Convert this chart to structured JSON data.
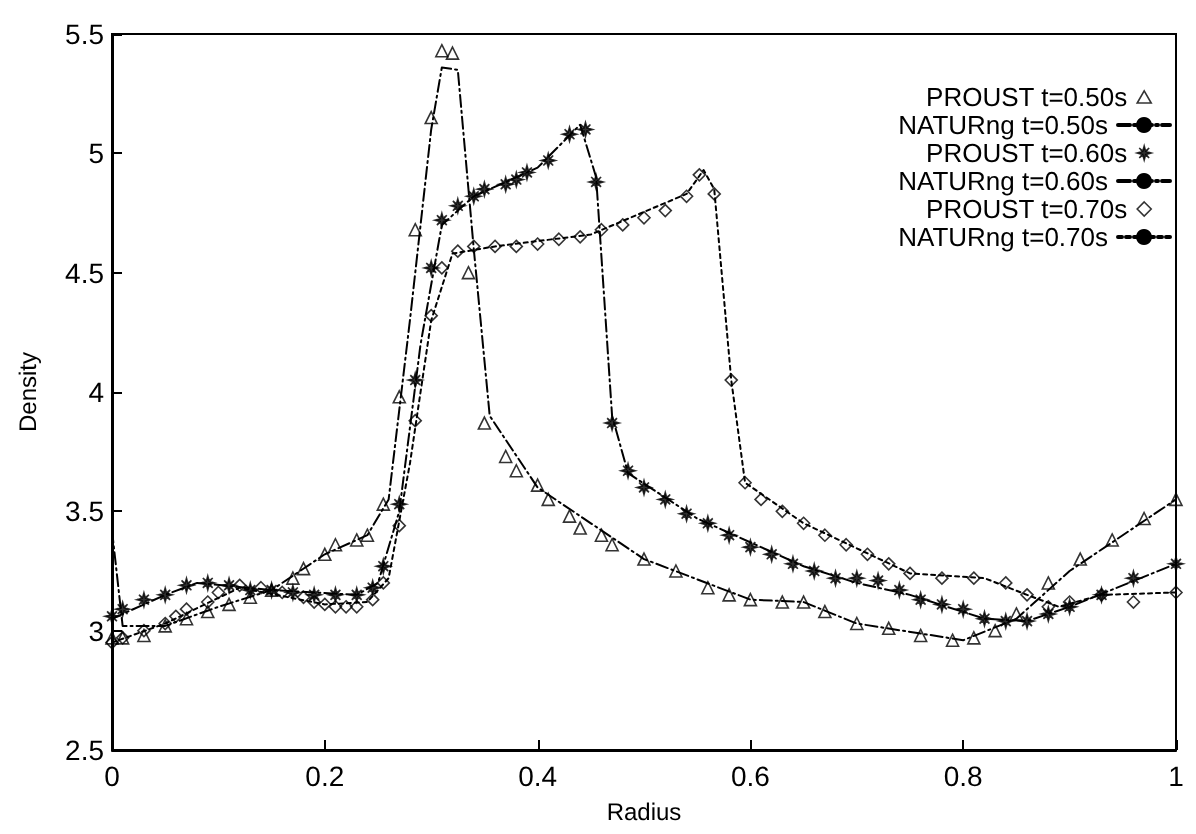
{
  "chart_data": {
    "type": "line",
    "xlabel": "Radius",
    "ylabel": "Density",
    "xlim": [
      0,
      1
    ],
    "xticks": [
      0,
      0.2,
      0.4,
      0.6,
      0.8,
      1
    ],
    "ylim": [
      2.5,
      5.5
    ],
    "yticks": [
      2.5,
      3,
      3.5,
      4,
      4.5,
      5,
      5.5
    ],
    "grid": false,
    "legend": "top right",
    "series": [
      {
        "name": "PROUST t=0.50s",
        "type": "scatter",
        "marker": "triangle",
        "color": "#000000",
        "x": [
          0,
          0.01,
          0.03,
          0.05,
          0.07,
          0.09,
          0.11,
          0.13,
          0.15,
          0.17,
          0.18,
          0.2,
          0.21,
          0.23,
          0.24,
          0.255,
          0.27,
          0.285,
          0.3,
          0.31,
          0.32,
          0.335,
          0.35,
          0.37,
          0.38,
          0.4,
          0.41,
          0.43,
          0.44,
          0.46,
          0.47,
          0.5,
          0.53,
          0.56,
          0.58,
          0.6,
          0.63,
          0.65,
          0.67,
          0.7,
          0.73,
          0.76,
          0.79,
          0.81,
          0.83,
          0.85,
          0.88,
          0.91,
          0.94,
          0.97,
          1
        ],
        "values": [
          2.97,
          2.97,
          2.98,
          3.02,
          3.05,
          3.08,
          3.11,
          3.14,
          3.17,
          3.22,
          3.26,
          3.32,
          3.36,
          3.38,
          3.4,
          3.53,
          3.98,
          4.68,
          5.15,
          5.43,
          5.42,
          4.5,
          3.87,
          3.73,
          3.67,
          3.61,
          3.55,
          3.48,
          3.43,
          3.4,
          3.36,
          3.3,
          3.25,
          3.18,
          3.15,
          3.13,
          3.12,
          3.12,
          3.08,
          3.03,
          3.01,
          2.98,
          2.96,
          2.97,
          3.0,
          3.07,
          3.2,
          3.3,
          3.38,
          3.47,
          3.55
        ]
      },
      {
        "name": "NATURng t=0.50s",
        "type": "line",
        "line_style": "dashed",
        "color": "#000000",
        "x": [
          0,
          0.01,
          0.05,
          0.1,
          0.15,
          0.2,
          0.24,
          0.26,
          0.28,
          0.3,
          0.31,
          0.325,
          0.34,
          0.355,
          0.4,
          0.5,
          0.6,
          0.65,
          0.7,
          0.8,
          0.85,
          0.9,
          1
        ],
        "values": [
          3.42,
          3.02,
          3.02,
          3.1,
          3.17,
          3.32,
          3.4,
          3.55,
          4.3,
          5.1,
          5.36,
          5.35,
          4.6,
          3.9,
          3.6,
          3.3,
          3.13,
          3.12,
          3.03,
          2.96,
          3.05,
          3.25,
          3.55
        ]
      },
      {
        "name": "PROUST t=0.60s",
        "type": "scatter",
        "marker": "star",
        "color": "#000000",
        "x": [
          0,
          0.01,
          0.03,
          0.05,
          0.07,
          0.09,
          0.11,
          0.13,
          0.15,
          0.17,
          0.19,
          0.21,
          0.23,
          0.245,
          0.255,
          0.27,
          0.285,
          0.3,
          0.31,
          0.325,
          0.34,
          0.35,
          0.37,
          0.38,
          0.39,
          0.41,
          0.43,
          0.445,
          0.455,
          0.47,
          0.485,
          0.5,
          0.52,
          0.54,
          0.56,
          0.58,
          0.6,
          0.62,
          0.64,
          0.66,
          0.68,
          0.7,
          0.72,
          0.74,
          0.76,
          0.78,
          0.8,
          0.82,
          0.84,
          0.86,
          0.88,
          0.9,
          0.93,
          0.96,
          1
        ],
        "values": [
          3.06,
          3.09,
          3.13,
          3.15,
          3.19,
          3.2,
          3.19,
          3.17,
          3.17,
          3.16,
          3.15,
          3.15,
          3.15,
          3.18,
          3.27,
          3.53,
          4.05,
          4.52,
          4.72,
          4.78,
          4.82,
          4.85,
          4.87,
          4.89,
          4.92,
          4.97,
          5.08,
          5.1,
          4.88,
          3.87,
          3.67,
          3.6,
          3.55,
          3.49,
          3.45,
          3.4,
          3.35,
          3.32,
          3.28,
          3.25,
          3.22,
          3.22,
          3.21,
          3.17,
          3.13,
          3.11,
          3.09,
          3.05,
          3.04,
          3.04,
          3.07,
          3.1,
          3.15,
          3.22,
          3.28
        ]
      },
      {
        "name": "NATURng t=0.60s",
        "type": "line",
        "line_style": "dashed",
        "color": "#000000",
        "x": [
          0,
          0.05,
          0.08,
          0.15,
          0.23,
          0.25,
          0.27,
          0.29,
          0.31,
          0.34,
          0.4,
          0.44,
          0.455,
          0.47,
          0.485,
          0.55,
          0.65,
          0.7,
          0.75,
          0.82,
          0.86,
          0.9,
          1
        ],
        "values": [
          3.05,
          3.15,
          3.2,
          3.17,
          3.15,
          3.2,
          3.5,
          4.2,
          4.7,
          4.82,
          4.94,
          5.12,
          4.9,
          3.9,
          3.66,
          3.47,
          3.27,
          3.2,
          3.15,
          3.05,
          3.04,
          3.1,
          3.28
        ]
      },
      {
        "name": "PROUST t=0.70s",
        "type": "scatter",
        "marker": "diamond",
        "color": "#000000",
        "x": [
          0,
          0.01,
          0.03,
          0.05,
          0.06,
          0.07,
          0.09,
          0.1,
          0.12,
          0.14,
          0.16,
          0.18,
          0.19,
          0.2,
          0.21,
          0.22,
          0.23,
          0.245,
          0.255,
          0.27,
          0.285,
          0.3,
          0.31,
          0.325,
          0.34,
          0.36,
          0.38,
          0.4,
          0.42,
          0.44,
          0.46,
          0.48,
          0.5,
          0.52,
          0.54,
          0.552,
          0.566,
          0.582,
          0.595,
          0.61,
          0.63,
          0.65,
          0.67,
          0.69,
          0.71,
          0.73,
          0.75,
          0.78,
          0.81,
          0.84,
          0.86,
          0.88,
          0.9,
          0.93,
          0.96,
          1
        ],
        "values": [
          2.95,
          2.97,
          3.0,
          3.03,
          3.06,
          3.09,
          3.12,
          3.16,
          3.19,
          3.18,
          3.16,
          3.14,
          3.12,
          3.11,
          3.1,
          3.1,
          3.1,
          3.13,
          3.2,
          3.44,
          3.88,
          4.32,
          4.52,
          4.59,
          4.61,
          4.61,
          4.61,
          4.62,
          4.64,
          4.65,
          4.68,
          4.7,
          4.73,
          4.76,
          4.82,
          4.91,
          4.83,
          4.05,
          3.62,
          3.55,
          3.5,
          3.45,
          3.4,
          3.36,
          3.32,
          3.28,
          3.24,
          3.22,
          3.22,
          3.2,
          3.15,
          3.1,
          3.12,
          3.15,
          3.12,
          3.16
        ]
      },
      {
        "name": "NATURng t=0.70s",
        "type": "line",
        "line_style": "dotted",
        "color": "#000000",
        "x": [
          0,
          0.05,
          0.12,
          0.2,
          0.24,
          0.26,
          0.28,
          0.3,
          0.32,
          0.36,
          0.45,
          0.54,
          0.556,
          0.566,
          0.582,
          0.595,
          0.65,
          0.75,
          0.82,
          0.86,
          0.89,
          0.93,
          1
        ],
        "values": [
          2.95,
          3.03,
          3.18,
          3.11,
          3.12,
          3.22,
          3.7,
          4.3,
          4.58,
          4.61,
          4.66,
          4.83,
          4.93,
          4.85,
          4.05,
          3.62,
          3.45,
          3.24,
          3.22,
          3.15,
          3.1,
          3.15,
          3.16
        ]
      }
    ]
  }
}
